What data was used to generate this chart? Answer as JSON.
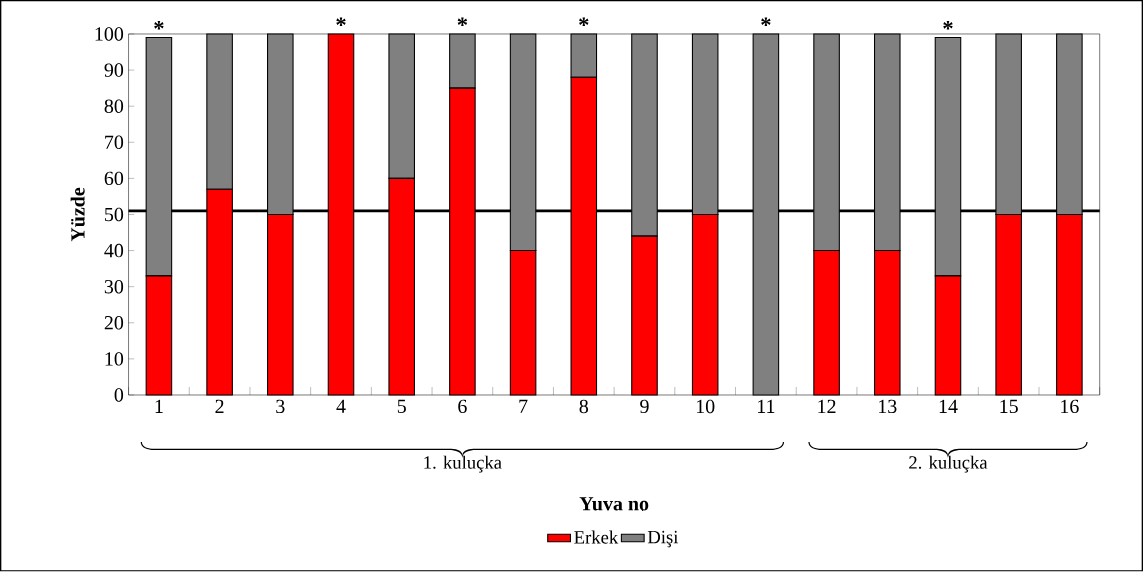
{
  "chart_data": {
    "type": "bar",
    "stacked": true,
    "xlabel": "Yuva no",
    "ylabel": "Yüzde",
    "categories": [
      "1",
      "2",
      "3",
      "4",
      "5",
      "6",
      "7",
      "8",
      "9",
      "10",
      "11",
      "12",
      "13",
      "14",
      "15",
      "16"
    ],
    "series": [
      {
        "name": "Erkek",
        "color": "#ff0000",
        "values": [
          33,
          57,
          50,
          100,
          60,
          85,
          40,
          88,
          44,
          50,
          0,
          40,
          40,
          33,
          50,
          50
        ]
      },
      {
        "name": "Dişi",
        "color": "#808080",
        "values": [
          66,
          43,
          50,
          0,
          40,
          15,
          60,
          12,
          56,
          50,
          100,
          60,
          60,
          66,
          50,
          50
        ]
      }
    ],
    "ylim": [
      0,
      100
    ],
    "yticks": [
      0,
      10,
      20,
      30,
      40,
      50,
      60,
      70,
      80,
      90,
      100
    ],
    "grid": false,
    "legend": "bottom",
    "ref_lines": [
      {
        "axis": "y",
        "value": 51,
        "color": "#000000"
      }
    ],
    "annotations": [
      "1. kuluçka",
      "2. kuluçka",
      {
        "text": "*",
        "x": "1",
        "y": 99
      },
      {
        "text": "*",
        "x": "4",
        "y": 100
      },
      {
        "text": "*",
        "x": "6",
        "y": 100
      },
      {
        "text": "*",
        "x": "8",
        "y": 100
      },
      {
        "text": "*",
        "x": "11",
        "y": 100
      },
      {
        "text": "*",
        "x": "14",
        "y": 99
      }
    ]
  }
}
